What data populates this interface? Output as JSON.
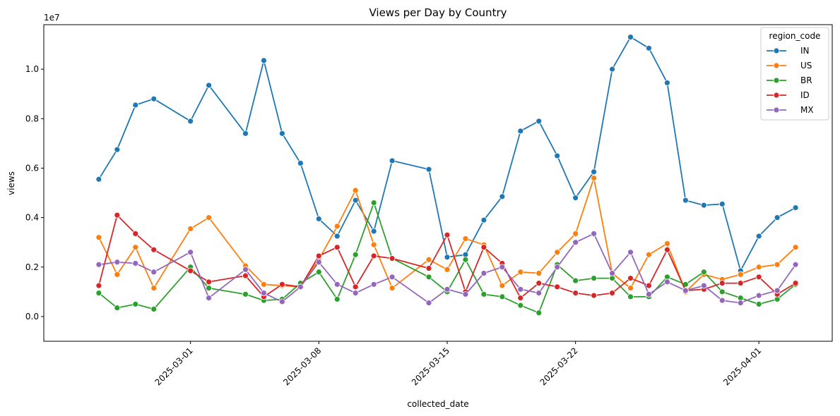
{
  "chart_data": {
    "type": "line",
    "title": "Views per Day by Country",
    "xlabel": "collected_date",
    "ylabel": "views",
    "y_scale_label": "1e7",
    "ylim": [
      -1000000,
      11800000
    ],
    "xlim": [
      "2025-02-21",
      "2025-04-05"
    ],
    "yticks": [
      0,
      2000000,
      4000000,
      6000000,
      8000000,
      10000000
    ],
    "ytick_labels": [
      "0.0",
      "0.2",
      "0.4",
      "0.6",
      "0.8",
      "1.0"
    ],
    "xticks": [
      "2025-03-01",
      "2025-03-08",
      "2025-03-15",
      "2025-03-22",
      "2025-04-01"
    ],
    "grid": false,
    "legend": {
      "title": "region_code",
      "position": "top-right"
    },
    "x": [
      "2025-02-24",
      "2025-02-25",
      "2025-02-26",
      "2025-02-27",
      "2025-03-01",
      "2025-03-02",
      "2025-03-04",
      "2025-03-05",
      "2025-03-06",
      "2025-03-07",
      "2025-03-08",
      "2025-03-09",
      "2025-03-10",
      "2025-03-11",
      "2025-03-12",
      "2025-03-14",
      "2025-03-15",
      "2025-03-16",
      "2025-03-17",
      "2025-03-18",
      "2025-03-19",
      "2025-03-20",
      "2025-03-21",
      "2025-03-22",
      "2025-03-23",
      "2025-03-24",
      "2025-03-25",
      "2025-03-26",
      "2025-03-27",
      "2025-03-28",
      "2025-03-29",
      "2025-03-30",
      "2025-03-31",
      "2025-04-01",
      "2025-04-02",
      "2025-04-03"
    ],
    "series": [
      {
        "name": "IN",
        "color": "#1f77b4",
        "values": [
          5550000,
          6750000,
          8550000,
          8800000,
          7900000,
          9350000,
          7400000,
          10350000,
          7400000,
          6200000,
          3950000,
          3250000,
          4700000,
          3450000,
          6300000,
          5950000,
          2400000,
          2500000,
          3900000,
          4850000,
          7500000,
          7900000,
          6500000,
          4800000,
          5850000,
          10000000,
          11300000,
          10850000,
          9450000,
          4700000,
          4500000,
          4550000,
          1850000,
          3250000,
          4000000,
          4400000
        ]
      },
      {
        "name": "US",
        "color": "#ff7f0e",
        "values": [
          3200000,
          1700000,
          2800000,
          1150000,
          3550000,
          4000000,
          2050000,
          1300000,
          1250000,
          1200000,
          2300000,
          3650000,
          5100000,
          2900000,
          1150000,
          2300000,
          1900000,
          3150000,
          2900000,
          1250000,
          1800000,
          1750000,
          2600000,
          3350000,
          5600000,
          1750000,
          1150000,
          2500000,
          2950000,
          1000000,
          1700000,
          1500000,
          1700000,
          2000000,
          2100000,
          2800000
        ]
      },
      {
        "name": "BR",
        "color": "#2ca02c",
        "values": [
          950000,
          350000,
          500000,
          300000,
          2000000,
          1150000,
          900000,
          650000,
          700000,
          1350000,
          1800000,
          700000,
          2500000,
          4600000,
          2350000,
          1600000,
          1000000,
          2300000,
          900000,
          800000,
          450000,
          150000,
          2100000,
          1450000,
          1550000,
          1550000,
          800000,
          800000,
          1600000,
          1300000,
          1800000,
          1000000,
          750000,
          500000,
          700000,
          1300000
        ]
      },
      {
        "name": "ID",
        "color": "#d62728",
        "values": [
          1250000,
          4100000,
          3350000,
          2700000,
          1850000,
          1400000,
          1650000,
          800000,
          1300000,
          1200000,
          2450000,
          2800000,
          1200000,
          2450000,
          2350000,
          1950000,
          3300000,
          1000000,
          2800000,
          2150000,
          750000,
          1350000,
          1200000,
          950000,
          850000,
          950000,
          1550000,
          1250000,
          2700000,
          1050000,
          1100000,
          1350000,
          1350000,
          1600000,
          900000,
          1350000
        ]
      },
      {
        "name": "MX",
        "color": "#9467bd",
        "values": [
          2100000,
          2200000,
          2150000,
          1800000,
          2600000,
          750000,
          1900000,
          950000,
          600000,
          1200000,
          2200000,
          1300000,
          950000,
          1300000,
          1600000,
          550000,
          1100000,
          900000,
          1750000,
          2000000,
          1100000,
          950000,
          2000000,
          3000000,
          3350000,
          1750000,
          2600000,
          900000,
          1400000,
          1050000,
          1250000,
          650000,
          550000,
          850000,
          1050000,
          2100000
        ]
      }
    ]
  }
}
